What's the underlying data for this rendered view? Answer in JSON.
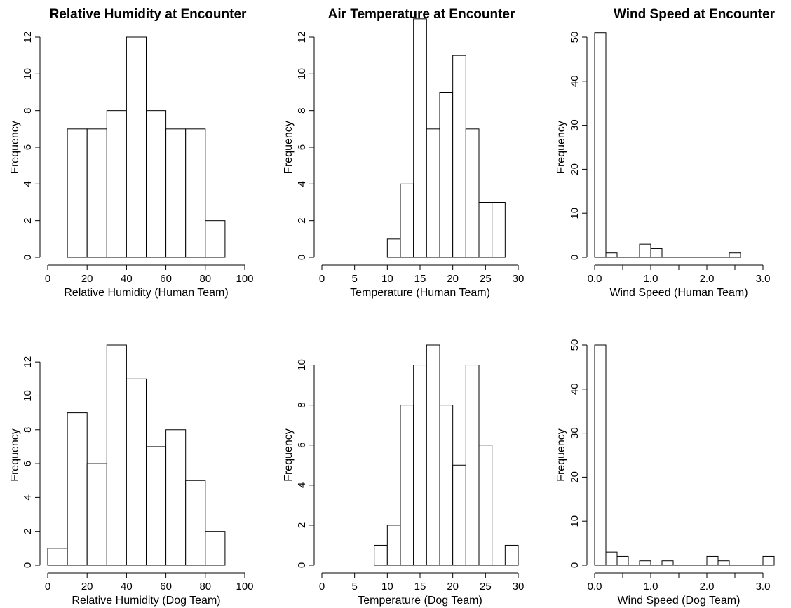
{
  "chart_data": [
    {
      "type": "bar",
      "title": "Relative Humidity at Encounter",
      "xlabel": "Relative Humidity (Human Team)",
      "ylabel": "Frequency",
      "xlim": [
        0,
        100
      ],
      "ylim": [
        0,
        12
      ],
      "xticks": [
        0,
        20,
        40,
        60,
        80,
        100
      ],
      "xtick_labels": [
        "0",
        "20",
        "40",
        "60",
        "80",
        "100"
      ],
      "yticks": [
        0,
        2,
        4,
        6,
        8,
        10,
        12
      ],
      "ytick_labels": [
        "0",
        "2",
        "4",
        "6",
        "8",
        "10",
        "12"
      ],
      "bins": [
        [
          10,
          20
        ],
        [
          20,
          30
        ],
        [
          30,
          40
        ],
        [
          40,
          50
        ],
        [
          50,
          60
        ],
        [
          60,
          70
        ],
        [
          70,
          80
        ],
        [
          80,
          90
        ]
      ],
      "values": [
        7,
        7,
        8,
        12,
        8,
        7,
        7,
        2
      ]
    },
    {
      "type": "bar",
      "title": "Air Temperature at Encounter",
      "xlabel": "Temperature (Human Team)",
      "ylabel": "Frequency",
      "xlim": [
        0,
        30
      ],
      "ylim": [
        0,
        12
      ],
      "xticks": [
        0,
        5,
        10,
        15,
        20,
        25,
        30
      ],
      "xtick_labels": [
        "0",
        "5",
        "10",
        "15",
        "20",
        "25",
        "30"
      ],
      "yticks": [
        0,
        2,
        4,
        6,
        8,
        10,
        12
      ],
      "ytick_labels": [
        "0",
        "2",
        "4",
        "6",
        "8",
        "10",
        "12"
      ],
      "bins": [
        [
          10,
          12
        ],
        [
          12,
          14
        ],
        [
          14,
          16
        ],
        [
          16,
          18
        ],
        [
          18,
          20
        ],
        [
          20,
          22
        ],
        [
          22,
          24
        ],
        [
          24,
          26
        ],
        [
          26,
          28
        ]
      ],
      "values": [
        1,
        4,
        13,
        7,
        9,
        11,
        7,
        3,
        3
      ]
    },
    {
      "type": "bar",
      "title": "Wind Speed at Encounter",
      "xlabel": "Wind Speed (Human Team)",
      "ylabel": "Frequency",
      "xlim": [
        0,
        3.5
      ],
      "ylim": [
        0,
        50
      ],
      "xticks": [
        0,
        1,
        2,
        3
      ],
      "xtick_labels": [
        "0.0",
        "1.0",
        "2.0",
        "3.0"
      ],
      "minor_xticks": [
        0.5,
        1.5,
        2.5
      ],
      "yticks": [
        0,
        10,
        20,
        30,
        40,
        50
      ],
      "ytick_labels": [
        "0",
        "10",
        "20",
        "30",
        "40",
        "50"
      ],
      "bins": [
        [
          0,
          0.2
        ],
        [
          0.2,
          0.4
        ],
        [
          0.4,
          0.6
        ],
        [
          0.6,
          0.8
        ],
        [
          0.8,
          1.0
        ],
        [
          1.0,
          1.2
        ],
        [
          1.2,
          1.4
        ],
        [
          1.4,
          1.6
        ],
        [
          1.6,
          1.8
        ],
        [
          1.8,
          2.0
        ],
        [
          2.0,
          2.2
        ],
        [
          2.2,
          2.4
        ],
        [
          2.4,
          2.6
        ]
      ],
      "values": [
        51,
        1,
        0,
        0,
        3,
        2,
        0,
        0,
        0,
        0,
        0,
        0,
        1
      ]
    },
    {
      "type": "bar",
      "title": "",
      "xlabel": "Relative Humidity (Dog Team)",
      "ylabel": "Frequency",
      "xlim": [
        0,
        100
      ],
      "ylim": [
        0,
        13
      ],
      "xticks": [
        0,
        20,
        40,
        60,
        80,
        100
      ],
      "xtick_labels": [
        "0",
        "20",
        "40",
        "60",
        "80",
        "100"
      ],
      "yticks": [
        0,
        2,
        4,
        6,
        8,
        10,
        12
      ],
      "ytick_labels": [
        "0",
        "2",
        "4",
        "6",
        "8",
        "10",
        "12"
      ],
      "bins": [
        [
          0,
          10
        ],
        [
          10,
          20
        ],
        [
          20,
          30
        ],
        [
          30,
          40
        ],
        [
          40,
          50
        ],
        [
          50,
          60
        ],
        [
          60,
          70
        ],
        [
          70,
          80
        ],
        [
          80,
          90
        ]
      ],
      "values": [
        1,
        9,
        6,
        13,
        11,
        7,
        8,
        5,
        2
      ]
    },
    {
      "type": "bar",
      "title": "",
      "xlabel": "Temperature (Dog Team)",
      "ylabel": "Frequency",
      "xlim": [
        0,
        30
      ],
      "ylim": [
        0,
        11
      ],
      "xticks": [
        0,
        5,
        10,
        15,
        20,
        25,
        30
      ],
      "xtick_labels": [
        "0",
        "5",
        "10",
        "15",
        "20",
        "25",
        "30"
      ],
      "yticks": [
        0,
        2,
        4,
        6,
        8,
        10
      ],
      "ytick_labels": [
        "0",
        "2",
        "4",
        "6",
        "8",
        "10"
      ],
      "bins": [
        [
          8,
          10
        ],
        [
          10,
          12
        ],
        [
          12,
          14
        ],
        [
          14,
          16
        ],
        [
          16,
          18
        ],
        [
          18,
          20
        ],
        [
          20,
          22
        ],
        [
          22,
          24
        ],
        [
          24,
          26
        ],
        [
          26,
          28
        ],
        [
          28,
          30
        ]
      ],
      "values": [
        1,
        2,
        8,
        10,
        11,
        8,
        5,
        10,
        6,
        0,
        1
      ]
    },
    {
      "type": "bar",
      "title": "",
      "xlabel": "Wind Speed (Dog Team)",
      "ylabel": "Frequency",
      "xlim": [
        0,
        3.5
      ],
      "ylim": [
        0,
        50
      ],
      "xticks": [
        0,
        1,
        2,
        3
      ],
      "xtick_labels": [
        "0.0",
        "1.0",
        "2.0",
        "3.0"
      ],
      "minor_xticks": [
        0.5,
        1.5,
        2.5
      ],
      "yticks": [
        0,
        10,
        20,
        30,
        40,
        50
      ],
      "ytick_labels": [
        "0",
        "10",
        "20",
        "30",
        "40",
        "50"
      ],
      "bins": [
        [
          0,
          0.2
        ],
        [
          0.2,
          0.4
        ],
        [
          0.4,
          0.6
        ],
        [
          0.6,
          0.8
        ],
        [
          0.8,
          1.0
        ],
        [
          1.0,
          1.2
        ],
        [
          1.2,
          1.4
        ],
        [
          1.4,
          1.6
        ],
        [
          1.6,
          1.8
        ],
        [
          1.8,
          2.0
        ],
        [
          2.0,
          2.2
        ],
        [
          2.2,
          2.4
        ],
        [
          2.4,
          2.6
        ],
        [
          2.6,
          2.8
        ],
        [
          2.8,
          3.0
        ],
        [
          3.0,
          3.2
        ]
      ],
      "values": [
        50,
        3,
        2,
        0,
        1,
        0,
        1,
        0,
        0,
        0,
        2,
        1,
        0,
        0,
        0,
        2
      ]
    }
  ]
}
